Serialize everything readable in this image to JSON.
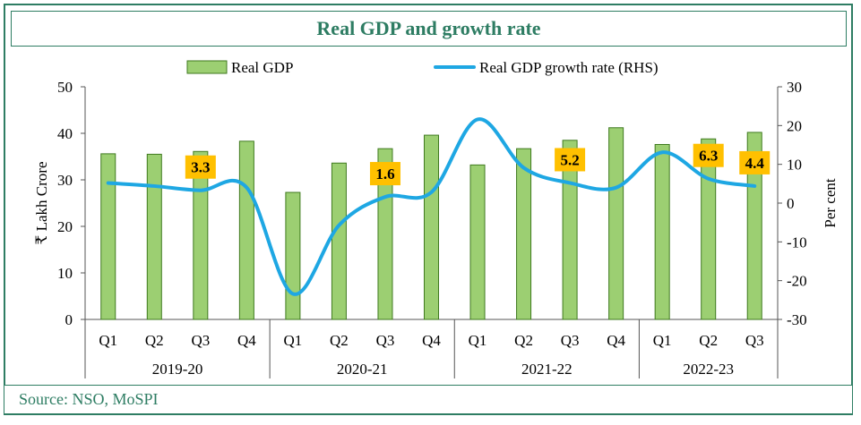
{
  "chart_data": {
    "type": "bar",
    "title": "Real GDP and growth rate",
    "source": "Source: NSO, MoSPI",
    "legend": {
      "bar_label": "Real GDP",
      "line_label": "Real GDP growth rate (RHS)",
      "position": "top"
    },
    "ylabel_left": "₹ Lakh Crore",
    "ylabel_right": "Per cent",
    "ylim_left": [
      0,
      50
    ],
    "ylim_right": [
      -30,
      30
    ],
    "yticks_left": [
      "0",
      "10",
      "20",
      "30",
      "40",
      "50"
    ],
    "yticks_right": [
      "-30",
      "-20",
      "-10",
      "0",
      "10",
      "20",
      "30"
    ],
    "yticks_left_values": [
      0,
      10,
      20,
      30,
      40,
      50
    ],
    "yticks_right_values": [
      -30,
      -20,
      -10,
      0,
      10,
      20,
      30
    ],
    "categories": [
      "Q1",
      "Q2",
      "Q3",
      "Q4",
      "Q1",
      "Q2",
      "Q3",
      "Q4",
      "Q1",
      "Q2",
      "Q3",
      "Q4",
      "Q1",
      "Q2",
      "Q3"
    ],
    "groups": [
      {
        "label": "2019-20",
        "count": 4
      },
      {
        "label": "2020-21",
        "count": 4
      },
      {
        "label": "2021-22",
        "count": 4
      },
      {
        "label": "2022-23",
        "count": 3
      }
    ],
    "series": [
      {
        "name": "Real GDP",
        "type": "bar",
        "axis": "left",
        "values": [
          35.6,
          35.5,
          36.1,
          38.3,
          27.3,
          33.6,
          36.7,
          39.6,
          33.2,
          36.7,
          38.5,
          41.2,
          37.6,
          38.8,
          40.2
        ]
      },
      {
        "name": "Real GDP growth rate (RHS)",
        "type": "line",
        "axis": "right",
        "values": [
          5.2,
          4.4,
          3.3,
          4.0,
          -23.4,
          -5.7,
          1.6,
          2.8,
          21.6,
          9.1,
          5.2,
          4.0,
          13.1,
          6.3,
          4.4
        ]
      }
    ],
    "annotations": [
      {
        "index": 2,
        "text": "3.3",
        "value": 3.3
      },
      {
        "index": 6,
        "text": "1.6",
        "value": 1.6
      },
      {
        "index": 10,
        "text": "5.2",
        "value": 5.2
      },
      {
        "index": 13,
        "text": "6.3",
        "value": 6.3
      },
      {
        "index": 14,
        "text": "4.4",
        "value": 4.4
      }
    ],
    "colors": {
      "bar_fill": "#9ccf72",
      "bar_stroke": "#3f7a1f",
      "line": "#1ea7e3",
      "label_bg": "#ffc000",
      "brand": "#2e7d63"
    }
  }
}
